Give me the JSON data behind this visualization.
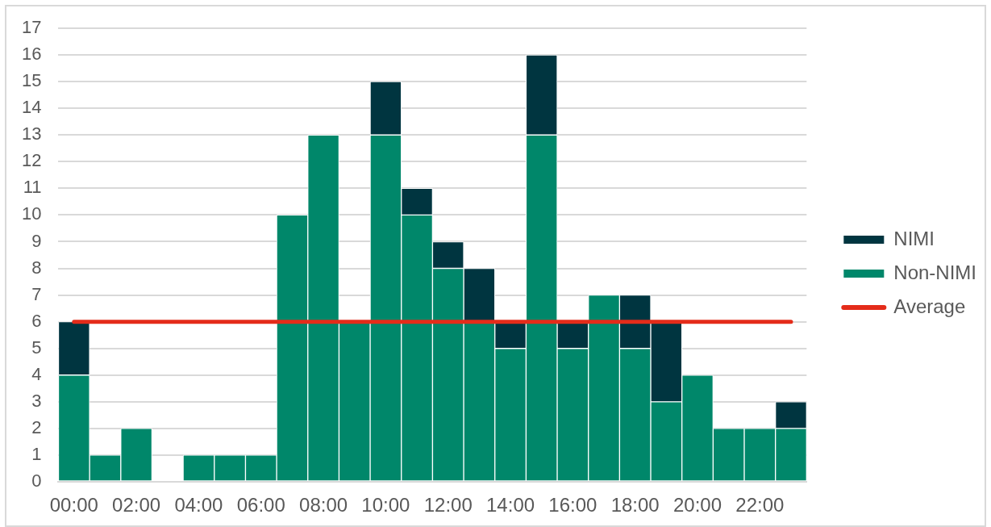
{
  "chart_data": {
    "type": "bar",
    "stacked": true,
    "categories": [
      "00:00",
      null,
      "02:00",
      null,
      "04:00",
      null,
      "06:00",
      null,
      "08:00",
      null,
      "10:00",
      null,
      "12:00",
      null,
      "14:00",
      null,
      "16:00",
      null,
      "18:00",
      null,
      "20:00",
      null,
      "22:00",
      null
    ],
    "series": [
      {
        "name": "Non-NIMI",
        "color": "#00876a",
        "values": [
          4,
          1,
          2,
          0,
          1,
          1,
          1,
          10,
          13,
          6,
          13,
          10,
          8,
          6,
          5,
          13,
          5,
          7,
          5,
          3,
          4,
          2,
          2,
          2
        ]
      },
      {
        "name": "NIMI",
        "color": "#003540",
        "values": [
          2,
          0,
          0,
          0,
          0,
          0,
          0,
          0,
          0,
          0,
          2,
          1,
          1,
          2,
          1,
          3,
          1,
          0,
          2,
          3,
          0,
          0,
          0,
          1
        ]
      },
      {
        "name": "Average",
        "type": "line",
        "color": "#e42c1a",
        "values": [
          6,
          6,
          6,
          6,
          6,
          6,
          6,
          6,
          6,
          6,
          6,
          6,
          6,
          6,
          6,
          6,
          6,
          6,
          6,
          6,
          6,
          6,
          6,
          6
        ]
      }
    ],
    "ylim": [
      0,
      17
    ],
    "yticks": [
      0,
      1,
      2,
      3,
      4,
      5,
      6,
      7,
      8,
      9,
      10,
      11,
      12,
      13,
      14,
      15,
      16,
      17
    ],
    "grid": "y",
    "legend": "right",
    "marker": "none"
  }
}
